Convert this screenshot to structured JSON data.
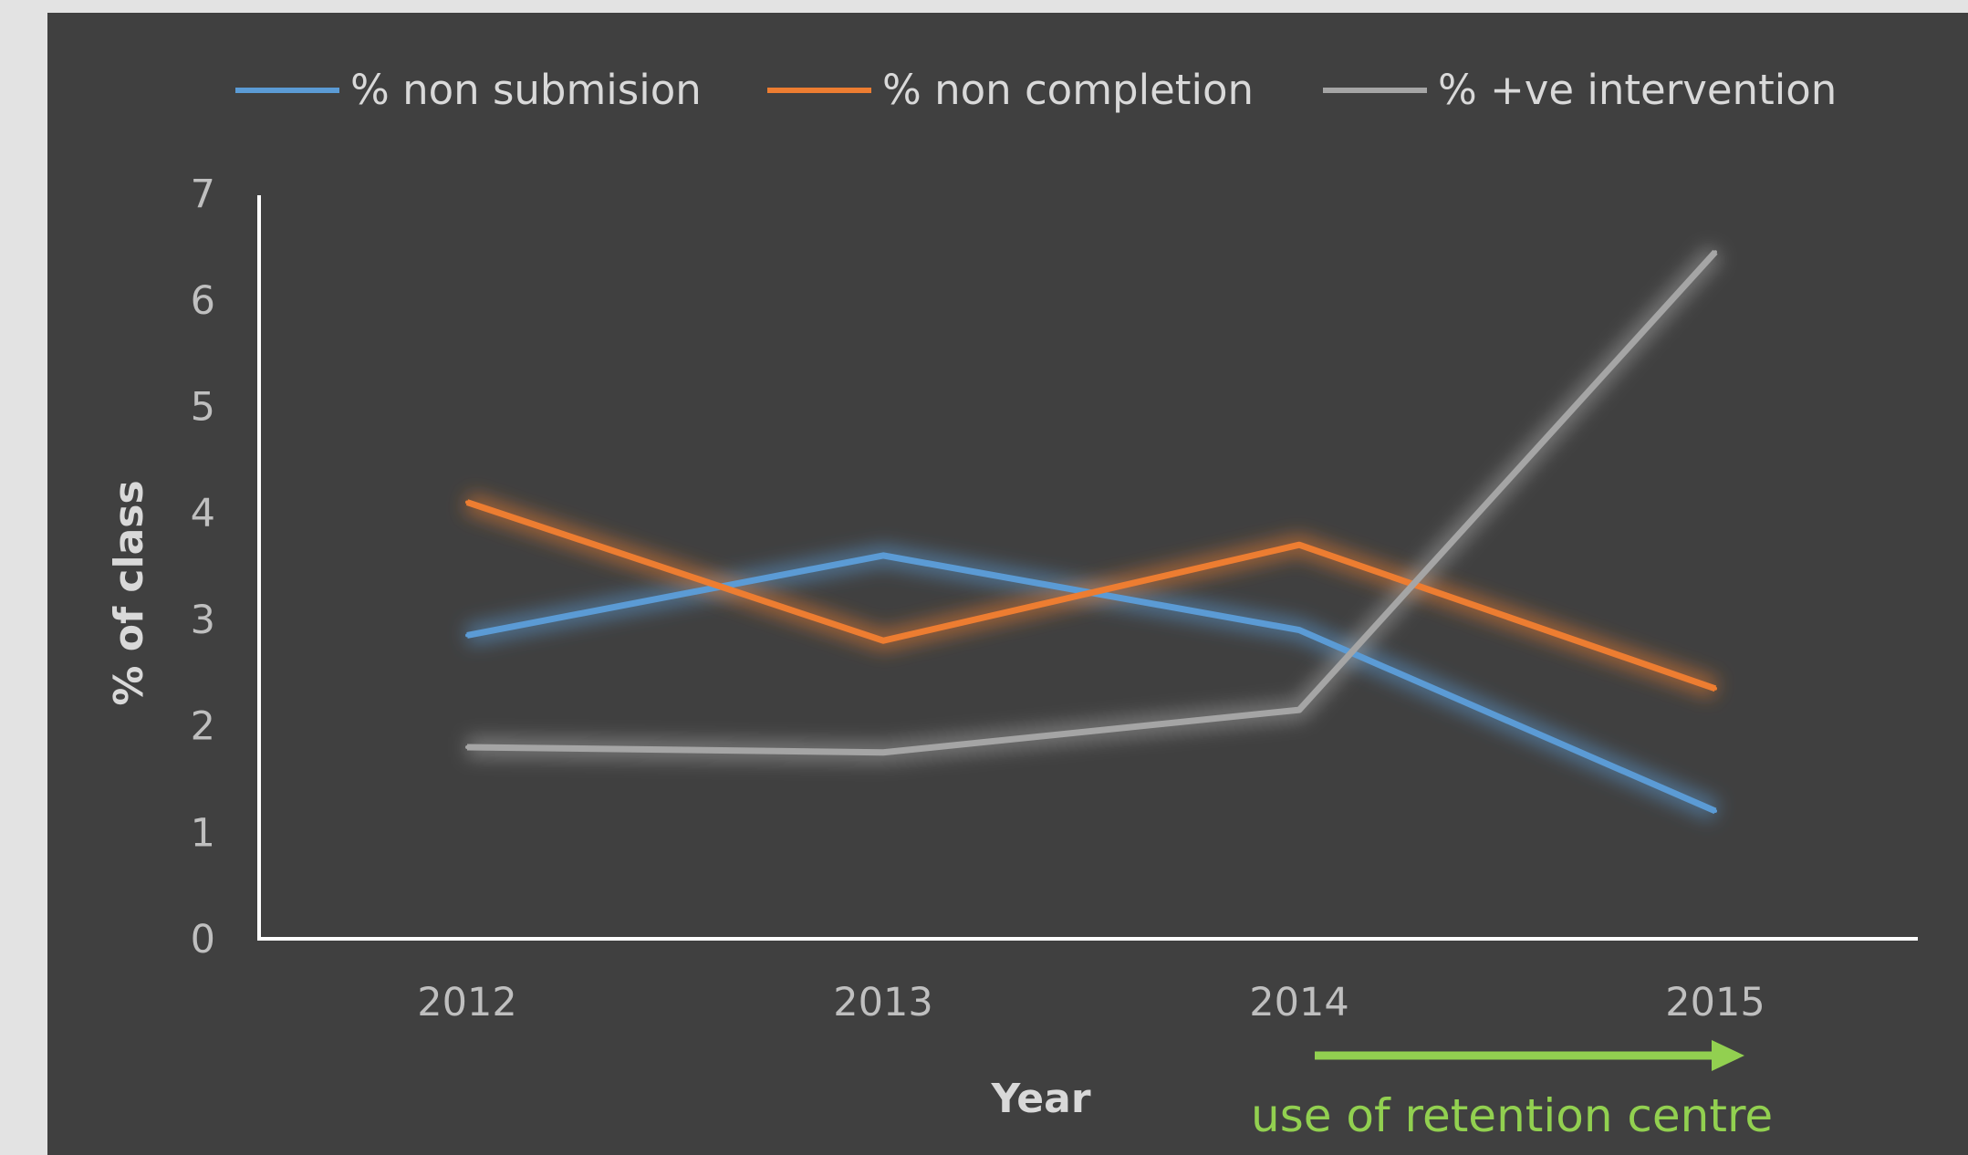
{
  "chart_data": {
    "type": "line",
    "categories": [
      "2012",
      "2013",
      "2014",
      "2015"
    ],
    "series": [
      {
        "name": "% non submision",
        "values": [
          2.85,
          3.6,
          2.9,
          1.2
        ],
        "color": "#5b9bd5"
      },
      {
        "name": "% non completion",
        "values": [
          4.1,
          2.8,
          3.7,
          2.35
        ],
        "color": "#ed7d31"
      },
      {
        "name": "% +ve intervention",
        "values": [
          1.8,
          1.75,
          2.15,
          6.45
        ],
        "color": "#a5a5a5"
      }
    ],
    "xlabel": "Year",
    "ylabel": "% of class",
    "ylim": [
      0,
      7
    ],
    "yticks": [
      "0",
      "1",
      "2",
      "3",
      "4",
      "5",
      "6",
      "7"
    ],
    "grid": false,
    "legend_position": "top",
    "annotation": {
      "text": "use of retention centre",
      "color": "#92d050",
      "arrow_from": "2014",
      "arrow_to": "2015"
    },
    "colors": {
      "background": "#404040",
      "axis": "#ffffff",
      "page": "#e3e3e3"
    }
  }
}
